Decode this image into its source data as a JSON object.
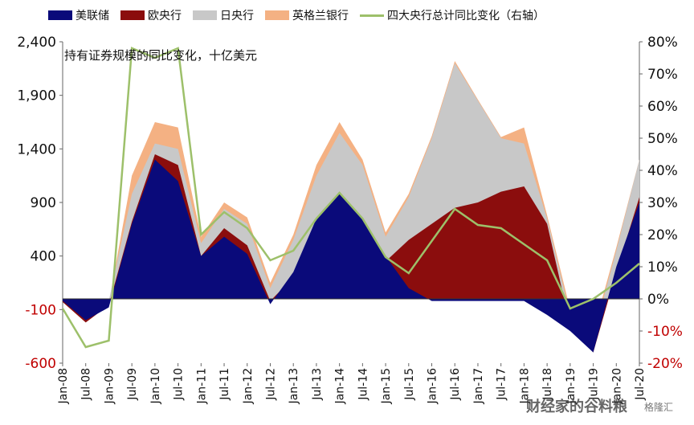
{
  "legend": [
    {
      "label": "美联储",
      "color": "#0a0a7a",
      "type": "area"
    },
    {
      "label": "欧央行",
      "color": "#8b0d0d",
      "type": "area"
    },
    {
      "label": "日央行",
      "color": "#c8c8c8",
      "type": "area"
    },
    {
      "label": "英格兰银行",
      "color": "#f4b183",
      "type": "area"
    },
    {
      "label": "四大央行总计同比变化（右轴）",
      "color": "#9dc06a",
      "type": "line"
    }
  ],
  "watermark_text": "财经家的谷料粮",
  "watermark_small": "格隆汇",
  "chart_data": {
    "type": "area",
    "title": "持有证券规模的同比变化，十亿美元",
    "categories": [
      "Jan-08",
      "Jul-08",
      "Jan-09",
      "Jul-09",
      "Jan-10",
      "Jul-10",
      "Jan-11",
      "Jul-11",
      "Jan-12",
      "Jul-12",
      "Jan-13",
      "Jul-13",
      "Jan-14",
      "Jul-14",
      "Jan-15",
      "Jul-15",
      "Jan-16",
      "Jul-16",
      "Jan-17",
      "Jul-17",
      "Jan-18",
      "Jul-18",
      "Jan-19",
      "Jul-19",
      "Jan-20",
      "Jul-20"
    ],
    "left_axis": {
      "min": -600,
      "max": 2400,
      "ticks": [
        "2,400",
        "1,900",
        "1,400",
        "900",
        "400",
        "-100",
        "-600"
      ]
    },
    "right_axis": {
      "min": -20,
      "max": 80,
      "ticks": [
        "80%",
        "70%",
        "60%",
        "50%",
        "40%",
        "30%",
        "20%",
        "10%",
        "0%",
        "-10%",
        "-20%"
      ]
    },
    "series": [
      {
        "name": "美联储",
        "values": [
          -20,
          -200,
          -80,
          700,
          1300,
          1100,
          400,
          580,
          420,
          -50,
          250,
          750,
          1000,
          750,
          400,
          100,
          -20,
          -20,
          -20,
          -20,
          -20,
          -150,
          -300,
          -500,
          300,
          900
        ]
      },
      {
        "name": "欧央行",
        "values": [
          -30,
          -220,
          -60,
          720,
          1350,
          1250,
          400,
          660,
          500,
          -20,
          200,
          700,
          950,
          700,
          350,
          550,
          700,
          850,
          900,
          1000,
          1050,
          700,
          -250,
          -500,
          250,
          950
        ]
      },
      {
        "name": "日央行",
        "values": [
          -10,
          -60,
          -20,
          980,
          1450,
          1400,
          520,
          840,
          700,
          100,
          550,
          1150,
          1550,
          1250,
          580,
          950,
          1500,
          2200,
          1850,
          1500,
          1450,
          750,
          -150,
          -350,
          450,
          1300
        ]
      },
      {
        "name": "英格兰银行",
        "values": [
          -20,
          -80,
          -40,
          1150,
          1650,
          1600,
          580,
          900,
          760,
          150,
          600,
          1250,
          1650,
          1300,
          620,
          980,
          1520,
          2220,
          1860,
          1510,
          1600,
          780,
          -100,
          -300,
          480,
          1300
        ]
      },
      {
        "name": "四大央行总计同比变化（右轴）",
        "axis": "right",
        "values": [
          -3,
          -15,
          -13,
          78,
          75,
          78,
          20,
          27,
          22,
          12,
          15,
          25,
          33,
          25,
          13,
          8,
          18,
          28,
          23,
          22,
          17,
          12,
          -3,
          0,
          5,
          11
        ]
      }
    ]
  }
}
